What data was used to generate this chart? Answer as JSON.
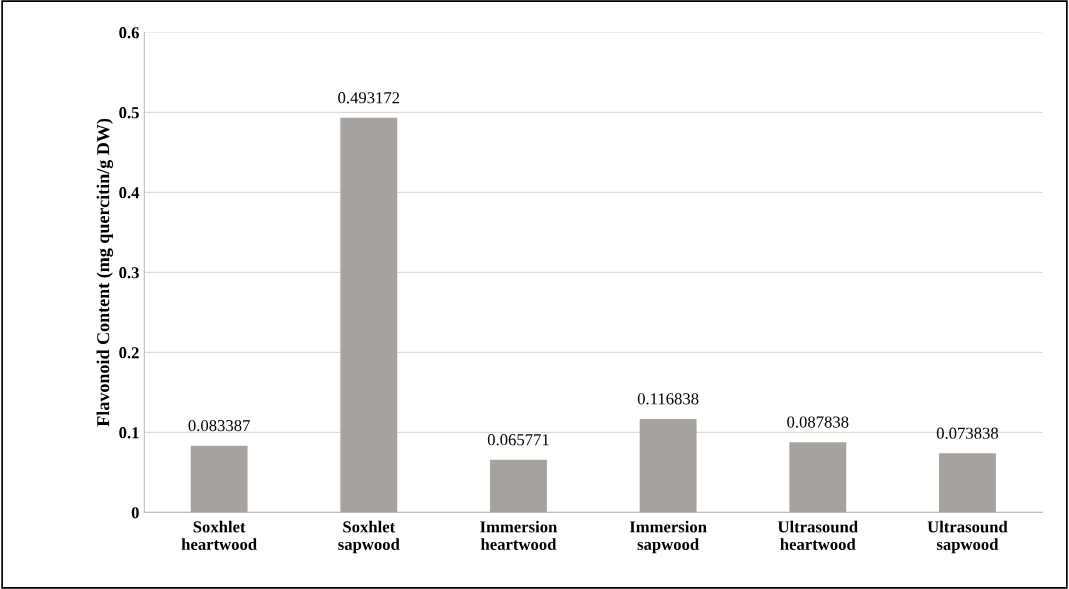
{
  "chart_data": {
    "type": "bar",
    "ylabel": "Flavonoid Content (mg quercitin/g DW)",
    "categories": [
      "Soxhlet\nheartwood",
      "Soxhlet\nsapwood",
      "Immersion\nheartwood",
      "Immersion\nsapwood",
      "Ultrasound\nheartwood",
      "Ultrasound\nsapwood"
    ],
    "values": [
      0.083387,
      0.493172,
      0.065771,
      0.116838,
      0.087838,
      0.073838
    ],
    "color": "#a6a2a0",
    "ylim": [
      0,
      0.6
    ],
    "yticks": [
      0,
      0.1,
      0.2,
      0.3,
      0.4,
      0.5,
      0.6
    ],
    "grid": "y",
    "data_labels": true
  }
}
